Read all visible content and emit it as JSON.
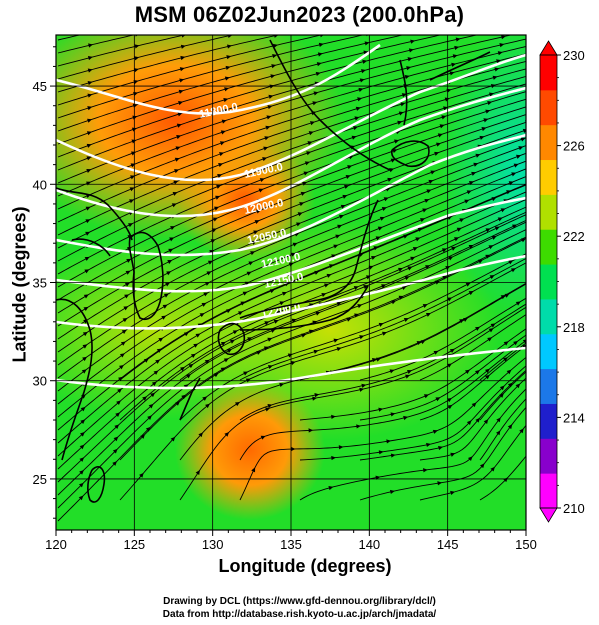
{
  "title": "MSM 06Z02Jun2023 (200.0hPa)",
  "xlabel": "Longitude (degrees)",
  "ylabel": "Latitude  (degrees)",
  "credits": [
    "Drawing by DCL (https://www.gfd-dennou.org/library/dcl/)",
    "Data from http://database.rish.kyoto-u.ac.jp/arch/jmadata/"
  ],
  "map": {
    "lon_range": [
      120,
      150
    ],
    "lat_range": [
      22.4,
      47.6
    ],
    "lon_ticks": [
      120,
      125,
      130,
      135,
      140,
      145,
      150
    ],
    "lat_ticks": [
      25,
      30,
      35,
      40,
      45
    ],
    "colorbar_range": [
      210,
      230
    ],
    "colorbar_ticks": [
      210,
      214,
      218,
      222,
      226,
      230
    ],
    "colorbar_colors": [
      "#ff00ff",
      "#8800cc",
      "#1f1fcc",
      "#1c78e8",
      "#00c8ff",
      "#00dcaa",
      "#00e050",
      "#3ddc00",
      "#b0e000",
      "#ffcc00",
      "#ff8800",
      "#ff4a00",
      "#ff0000"
    ],
    "contour_labels": [
      "11800.0",
      "11900.0",
      "12000.0",
      "12050.0",
      "12100.0",
      "12150.0",
      "12200.0"
    ],
    "field_colors": {
      "background": "#22de28",
      "warm_north": "#ff9c08",
      "warm_south": "#ff8a06",
      "mid": "#c8e000",
      "cool_east": "#00e3a0"
    },
    "wind": "streamlines"
  },
  "chart_data": {
    "type": "heatmap",
    "title": "MSM 06Z02Jun2023 (200.0hPa)",
    "xlabel": "Longitude (degrees)",
    "ylabel": "Latitude  (degrees)",
    "xlim": [
      120,
      150
    ],
    "ylim": [
      22.4,
      47.6
    ],
    "x_ticks": [
      120,
      125,
      130,
      135,
      140,
      145,
      150
    ],
    "y_ticks": [
      25,
      30,
      35,
      40,
      45
    ],
    "colorbar": {
      "min": 210,
      "max": 230,
      "ticks": [
        210,
        214,
        218,
        222,
        226,
        230
      ]
    },
    "contours": [
      {
        "label": "11800.0"
      },
      {
        "label": "11900.0"
      },
      {
        "label": "12000.0"
      },
      {
        "label": "12050.0"
      },
      {
        "label": "12100.0"
      },
      {
        "label": "12150.0"
      },
      {
        "label": "12200.0"
      }
    ]
  }
}
